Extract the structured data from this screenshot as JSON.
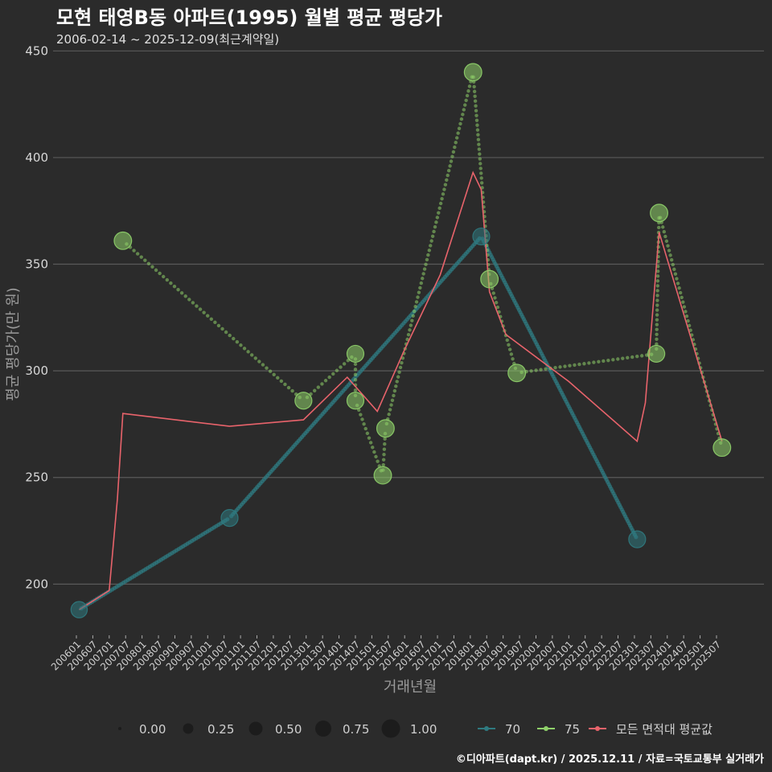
{
  "title": "모현 태영B동 아파트(1995) 월별 평균 평당가",
  "subtitle": "2006-02-14 ~ 2025-12-09(최근계약일)",
  "caption": "©디아파트(dapt.kr) / 2025.12.11 / 자료=국토교통부 실거래가",
  "colors": {
    "background": "#2b2b2b",
    "grid": "#5a5a5a",
    "s70": "#2f7a80",
    "s75": "#8fd16a",
    "avg": "#e8636b"
  },
  "chart_data": {
    "type": "line",
    "xlabel": "거래년월",
    "ylabel": "평균 평당가(만 원)",
    "ylim": [
      176,
      452
    ],
    "yticks": [
      200,
      250,
      300,
      350,
      400,
      450
    ],
    "x_tick_labels": [
      "200601",
      "200607",
      "200701",
      "200707",
      "200801",
      "200807",
      "200901",
      "200907",
      "201001",
      "201007",
      "201101",
      "201107",
      "201201",
      "201207",
      "201301",
      "201307",
      "201401",
      "201407",
      "201501",
      "201507",
      "201601",
      "201607",
      "201701",
      "201707",
      "201801",
      "201807",
      "201901",
      "201907",
      "202001",
      "202007",
      "202101",
      "202107",
      "202201",
      "202207",
      "202301",
      "202307",
      "202401",
      "202407",
      "202501",
      "202507"
    ],
    "series": [
      {
        "name": "70",
        "color": "#2f7a80",
        "points": [
          {
            "x": "2006-02",
            "y": 188,
            "size": 0.45
          },
          {
            "x": "2010-09",
            "y": 231,
            "size": 0.5
          },
          {
            "x": "2018-05",
            "y": 363,
            "size": 0.5
          },
          {
            "x": "2023-02",
            "y": 221,
            "size": 0.5
          }
        ]
      },
      {
        "name": "75",
        "color": "#8fd16a",
        "points": [
          {
            "x": "2007-06",
            "y": 361,
            "size": 0.55
          },
          {
            "x": "2012-12",
            "y": 286,
            "size": 0.5
          },
          {
            "x": "2014-07",
            "y": 308,
            "size": 0.5
          },
          {
            "x": "2014-07",
            "y": 286,
            "size": 0.5
          },
          {
            "x": "2015-05",
            "y": 251,
            "size": 0.55
          },
          {
            "x": "2015-06",
            "y": 273,
            "size": 0.55
          },
          {
            "x": "2018-02",
            "y": 440,
            "size": 0.55
          },
          {
            "x": "2018-08",
            "y": 343,
            "size": 0.55
          },
          {
            "x": "2019-06",
            "y": 299,
            "size": 0.55
          },
          {
            "x": "2023-09",
            "y": 308,
            "size": 0.5
          },
          {
            "x": "2023-10",
            "y": 374,
            "size": 0.55
          },
          {
            "x": "2025-09",
            "y": 264,
            "size": 0.55
          }
        ]
      }
    ],
    "average": {
      "name": "모든 면적대 평균값",
      "color": "#e8636b",
      "points": [
        {
          "x": "2006-02",
          "y": 188
        },
        {
          "x": "2007-01",
          "y": 197
        },
        {
          "x": "2007-04",
          "y": 240
        },
        {
          "x": "2007-06",
          "y": 280
        },
        {
          "x": "2010-09",
          "y": 274
        },
        {
          "x": "2012-12",
          "y": 277
        },
        {
          "x": "2014-04",
          "y": 297
        },
        {
          "x": "2015-03",
          "y": 281
        },
        {
          "x": "2016-01",
          "y": 310
        },
        {
          "x": "2017-02",
          "y": 345
        },
        {
          "x": "2018-02",
          "y": 393
        },
        {
          "x": "2018-05",
          "y": 385
        },
        {
          "x": "2018-08",
          "y": 337
        },
        {
          "x": "2019-02",
          "y": 317
        },
        {
          "x": "2021-01",
          "y": 295
        },
        {
          "x": "2023-02",
          "y": 267
        },
        {
          "x": "2023-05",
          "y": 285
        },
        {
          "x": "2023-10",
          "y": 365
        },
        {
          "x": "2025-09",
          "y": 267
        }
      ]
    },
    "size_legend": [
      "0.00",
      "0.25",
      "0.50",
      "0.75",
      "1.00"
    ],
    "legend_position": "bottom"
  }
}
